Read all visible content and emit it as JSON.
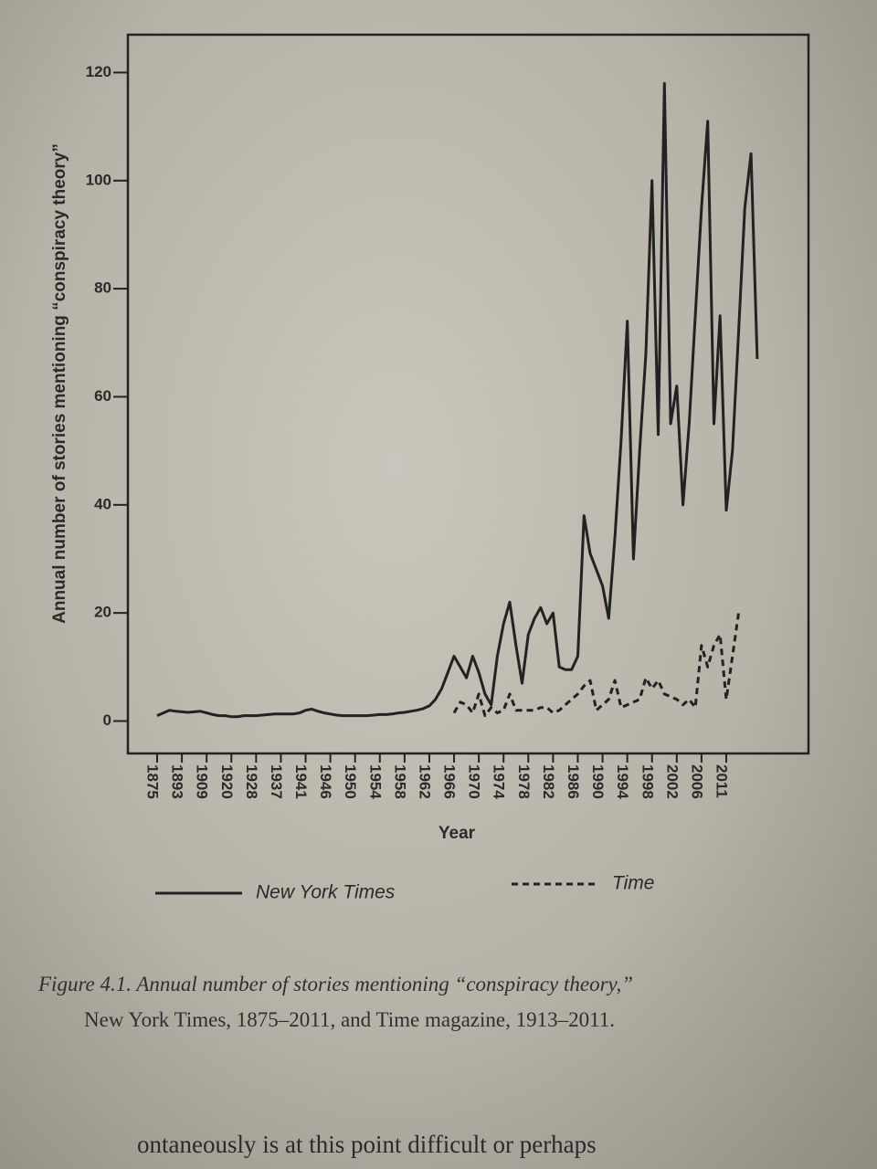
{
  "chart_data": {
    "type": "line",
    "y_label": "Annual number of stories mentioning “conspiracy theory”",
    "x_label": "Year",
    "categories": [
      "1875",
      null,
      null,
      null,
      "1893",
      null,
      null,
      null,
      "1909",
      null,
      null,
      null,
      "1920",
      null,
      null,
      null,
      "1928",
      null,
      null,
      null,
      "1937",
      null,
      null,
      null,
      "1941",
      null,
      null,
      null,
      "1946",
      null,
      null,
      null,
      "1950",
      null,
      null,
      null,
      "1954",
      null,
      null,
      null,
      "1958",
      null,
      null,
      null,
      "1962",
      null,
      null,
      null,
      "1966",
      null,
      null,
      null,
      "1970",
      null,
      null,
      null,
      "1974",
      null,
      null,
      null,
      "1978",
      null,
      null,
      null,
      "1982",
      null,
      null,
      null,
      "1986",
      null,
      null,
      null,
      "1990",
      null,
      null,
      null,
      "1994",
      null,
      null,
      null,
      "1998",
      null,
      null,
      null,
      "2002",
      null,
      null,
      null,
      "2006",
      null,
      null,
      null,
      "2011",
      null,
      null,
      null,
      null,
      null
    ],
    "series": [
      {
        "name": "New York Times",
        "color": "#222222",
        "style": "solid",
        "values": [
          1,
          1.5,
          2,
          1.8,
          1.7,
          1.6,
          1.7,
          1.8,
          1.5,
          1.2,
          1,
          1,
          0.8,
          0.8,
          1,
          1,
          1,
          1.1,
          1.2,
          1.3,
          1.3,
          1.3,
          1.3,
          1.5,
          2,
          2.2,
          1.8,
          1.5,
          1.3,
          1.1,
          1,
          1,
          1,
          1,
          1,
          1.1,
          1.2,
          1.2,
          1.3,
          1.5,
          1.6,
          1.8,
          2,
          2.3,
          2.8,
          4,
          6,
          9,
          12,
          10,
          8,
          12,
          9,
          5,
          3,
          12,
          18,
          22,
          14,
          7,
          16,
          19,
          21,
          18,
          20,
          10,
          9.5,
          9.5,
          12,
          38,
          31,
          28,
          25,
          19,
          34,
          52,
          74,
          30,
          50,
          68,
          100,
          53,
          118,
          55,
          62,
          40,
          55,
          75,
          95,
          111,
          55,
          75,
          39,
          50,
          72,
          95,
          105,
          67
        ]
      },
      {
        "name": "Time",
        "color": "#222222",
        "style": "dashed",
        "values": [
          null,
          null,
          null,
          null,
          null,
          null,
          null,
          null,
          null,
          null,
          null,
          null,
          null,
          null,
          null,
          null,
          null,
          null,
          null,
          null,
          null,
          null,
          null,
          null,
          null,
          null,
          null,
          null,
          null,
          null,
          null,
          null,
          null,
          null,
          null,
          null,
          null,
          null,
          null,
          null,
          null,
          null,
          null,
          null,
          null,
          null,
          null,
          null,
          1.5,
          3.5,
          3,
          1.5,
          5,
          1,
          2.5,
          1.5,
          2,
          5,
          2,
          2,
          2,
          2,
          2.5,
          2.5,
          1.5,
          2,
          3,
          4,
          5,
          6.5,
          7.5,
          2,
          3,
          4,
          7.5,
          2.5,
          3,
          3.5,
          4,
          8,
          6,
          7.5,
          5,
          4.5,
          4,
          3,
          4,
          2.5,
          14,
          10,
          14,
          16,
          4,
          12,
          20,
          null,
          null,
          null
        ]
      }
    ],
    "ylim": [
      -6,
      127
    ],
    "yticks": [
      0,
      20,
      40,
      60,
      80,
      100,
      120
    ],
    "grid": false
  },
  "caption": {
    "line1": "Figure 4.1. Annual number of stories mentioning “conspiracy theory,”",
    "line2": "New York Times, 1875–2011, and Time magazine, 1913–2011."
  },
  "body_text": "ontaneously is at this point difficult or perhaps"
}
